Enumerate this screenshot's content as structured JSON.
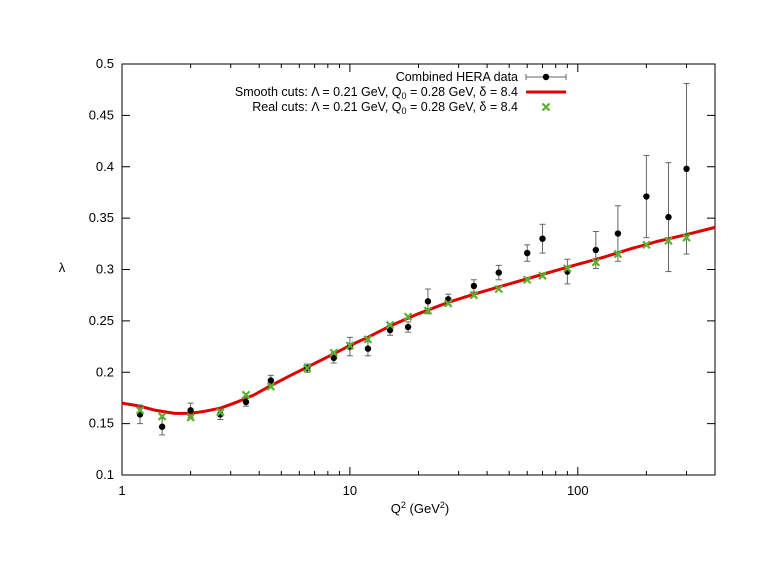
{
  "chart_data": {
    "type": "scatter",
    "xlabel": "Q",
    "xlabel_sup": "2",
    "xlabel_unit": " (GeV",
    "xlabel_unit_sup": "2",
    "xlabel_close": ")",
    "ylabel": "λ",
    "xscale": "log",
    "xlim": [
      1,
      400
    ],
    "ylim": [
      0.1,
      0.5
    ],
    "x_ticks": [
      {
        "value": 1,
        "label": "1"
      },
      {
        "value": 10,
        "label": "10"
      },
      {
        "value": 100,
        "label": "100"
      }
    ],
    "y_ticks": [
      {
        "value": 0.1,
        "label": "0.1"
      },
      {
        "value": 0.15,
        "label": "0.15"
      },
      {
        "value": 0.2,
        "label": "0.2"
      },
      {
        "value": 0.25,
        "label": "0.25"
      },
      {
        "value": 0.3,
        "label": "0.3"
      },
      {
        "value": 0.35,
        "label": "0.35"
      },
      {
        "value": 0.4,
        "label": "0.4"
      },
      {
        "value": 0.45,
        "label": "0.45"
      },
      {
        "value": 0.5,
        "label": "0.5"
      }
    ],
    "legend_position": "top-right",
    "series": [
      {
        "name": "Combined HERA data",
        "kind": "errorbar",
        "color": "#000000",
        "points": [
          {
            "x": 1.2,
            "y": 0.159,
            "err": 0.009
          },
          {
            "x": 1.5,
            "y": 0.147,
            "err": 0.008
          },
          {
            "x": 2.0,
            "y": 0.163,
            "err": 0.007
          },
          {
            "x": 2.7,
            "y": 0.159,
            "err": 0.005
          },
          {
            "x": 3.5,
            "y": 0.171,
            "err": 0.004
          },
          {
            "x": 4.5,
            "y": 0.192,
            "err": 0.005
          },
          {
            "x": 6.5,
            "y": 0.204,
            "err": 0.004
          },
          {
            "x": 8.5,
            "y": 0.214,
            "err": 0.005
          },
          {
            "x": 10.0,
            "y": 0.225,
            "err": 0.009
          },
          {
            "x": 12.0,
            "y": 0.223,
            "err": 0.007
          },
          {
            "x": 15.0,
            "y": 0.241,
            "err": 0.005
          },
          {
            "x": 18.0,
            "y": 0.244,
            "err": 0.005
          },
          {
            "x": 22.0,
            "y": 0.269,
            "err": 0.012
          },
          {
            "x": 27.0,
            "y": 0.271,
            "err": 0.005
          },
          {
            "x": 35.0,
            "y": 0.284,
            "err": 0.006
          },
          {
            "x": 45.0,
            "y": 0.297,
            "err": 0.007
          },
          {
            "x": 60.0,
            "y": 0.316,
            "err": 0.008
          },
          {
            "x": 70.0,
            "y": 0.33,
            "err": 0.014
          },
          {
            "x": 90.0,
            "y": 0.298,
            "err": 0.012
          },
          {
            "x": 120.0,
            "y": 0.319,
            "err": 0.018
          },
          {
            "x": 150.0,
            "y": 0.335,
            "err": 0.027
          },
          {
            "x": 200.0,
            "y": 0.371,
            "err": 0.04
          },
          {
            "x": 250.0,
            "y": 0.351,
            "err": 0.053
          },
          {
            "x": 300.0,
            "y": 0.398,
            "err": 0.083
          }
        ]
      },
      {
        "name": "Smooth cuts: Λ = 0.21 GeV, Q",
        "name_sub": "0",
        "name_rest": " = 0.28 GeV, δ = 8.4",
        "kind": "line",
        "color": "#e00000",
        "points": [
          {
            "x": 1.0,
            "y": 0.17
          },
          {
            "x": 1.2,
            "y": 0.167
          },
          {
            "x": 1.4,
            "y": 0.163
          },
          {
            "x": 1.7,
            "y": 0.16
          },
          {
            "x": 2.0,
            "y": 0.16
          },
          {
            "x": 2.3,
            "y": 0.162
          },
          {
            "x": 2.7,
            "y": 0.165
          },
          {
            "x": 3.2,
            "y": 0.171
          },
          {
            "x": 3.8,
            "y": 0.178
          },
          {
            "x": 4.5,
            "y": 0.187
          },
          {
            "x": 5.5,
            "y": 0.197
          },
          {
            "x": 6.5,
            "y": 0.205
          },
          {
            "x": 8.0,
            "y": 0.215
          },
          {
            "x": 10.0,
            "y": 0.226
          },
          {
            "x": 12.0,
            "y": 0.234
          },
          {
            "x": 15.0,
            "y": 0.245
          },
          {
            "x": 20.0,
            "y": 0.257
          },
          {
            "x": 27.0,
            "y": 0.268
          },
          {
            "x": 35.0,
            "y": 0.276
          },
          {
            "x": 45.0,
            "y": 0.283
          },
          {
            "x": 60.0,
            "y": 0.291
          },
          {
            "x": 80.0,
            "y": 0.299
          },
          {
            "x": 100.0,
            "y": 0.305
          },
          {
            "x": 130.0,
            "y": 0.312
          },
          {
            "x": 170.0,
            "y": 0.32
          },
          {
            "x": 220.0,
            "y": 0.327
          },
          {
            "x": 300.0,
            "y": 0.334
          },
          {
            "x": 400.0,
            "y": 0.341
          }
        ]
      },
      {
        "name": "Real cuts: Λ = 0.21 GeV, Q",
        "name_sub": "0",
        "name_rest": " = 0.28 GeV, δ = 8.4",
        "kind": "cross",
        "color": "#5cb030",
        "points": [
          {
            "x": 1.2,
            "y": 0.163
          },
          {
            "x": 1.5,
            "y": 0.157
          },
          {
            "x": 2.0,
            "y": 0.156
          },
          {
            "x": 2.7,
            "y": 0.161
          },
          {
            "x": 3.5,
            "y": 0.178
          },
          {
            "x": 4.5,
            "y": 0.186
          },
          {
            "x": 6.5,
            "y": 0.204
          },
          {
            "x": 8.5,
            "y": 0.219
          },
          {
            "x": 10.0,
            "y": 0.226
          },
          {
            "x": 12.0,
            "y": 0.232
          },
          {
            "x": 15.0,
            "y": 0.246
          },
          {
            "x": 18.0,
            "y": 0.254
          },
          {
            "x": 22.0,
            "y": 0.26
          },
          {
            "x": 27.0,
            "y": 0.267
          },
          {
            "x": 35.0,
            "y": 0.275
          },
          {
            "x": 45.0,
            "y": 0.281
          },
          {
            "x": 60.0,
            "y": 0.29
          },
          {
            "x": 70.0,
            "y": 0.294
          },
          {
            "x": 90.0,
            "y": 0.301
          },
          {
            "x": 120.0,
            "y": 0.307
          },
          {
            "x": 150.0,
            "y": 0.315
          },
          {
            "x": 200.0,
            "y": 0.324
          },
          {
            "x": 250.0,
            "y": 0.328
          },
          {
            "x": 300.0,
            "y": 0.331
          }
        ]
      }
    ]
  }
}
